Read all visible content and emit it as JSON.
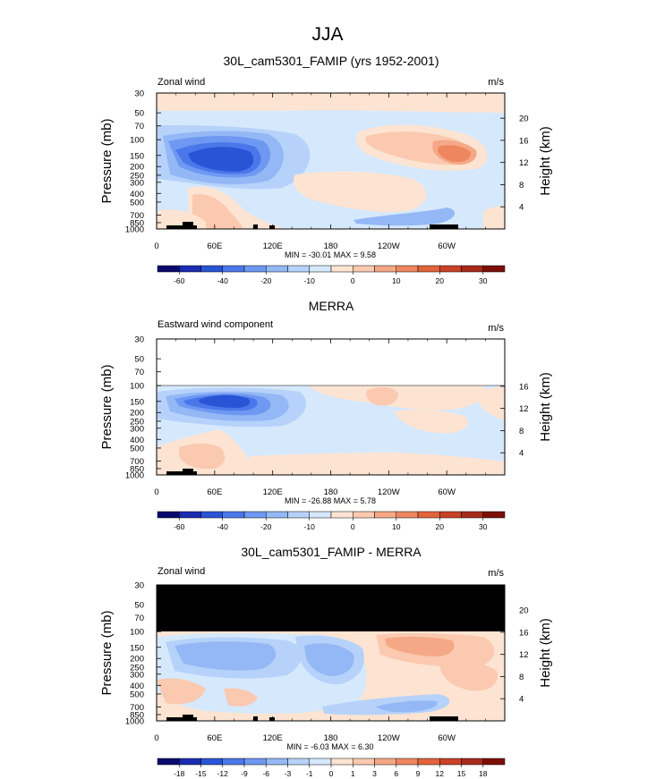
{
  "page": {
    "title": "JJA"
  },
  "chart_data": [
    {
      "type": "heatmap",
      "title": "30L_cam5301_FAMIP (yrs 1952-2001)",
      "left_label": "Zonal wind",
      "units": "m/s",
      "ylabel": "Pressure (mb)",
      "ylabel_right": "Height (km)",
      "x_ticks": [
        "0",
        "60E",
        "120E",
        "180",
        "120W",
        "60W"
      ],
      "y_ticks": [
        "30",
        "50",
        "70",
        "100",
        "150",
        "200",
        "250",
        "300",
        "400",
        "500",
        "700",
        "850",
        "1000"
      ],
      "height_ticks": [
        "20",
        "16",
        "12",
        "8",
        "4"
      ],
      "stats": "MIN = -30.01   MAX =   9.58",
      "data_top_pressure": 30,
      "colorbar": {
        "labels": [
          "-60",
          "-40",
          "-20",
          "-10",
          "0",
          "10",
          "20",
          "30"
        ],
        "colors": [
          "#0a0a6e",
          "#1a2cb0",
          "#2a54d6",
          "#4a78ea",
          "#6e98f2",
          "#94b8f6",
          "#b6d2fa",
          "#d6e8fc",
          "#fde4d2",
          "#fac9b0",
          "#f5a886",
          "#ee8660",
          "#e2643c",
          "#c94228",
          "#a82a1a",
          "#7a1008"
        ]
      }
    },
    {
      "type": "heatmap",
      "title": "MERRA",
      "left_label": "Eastward wind component",
      "units": "m/s",
      "ylabel": "Pressure (mb)",
      "ylabel_right": "Height (km)",
      "x_ticks": [
        "0",
        "60E",
        "120E",
        "180",
        "120W",
        "60W"
      ],
      "y_ticks": [
        "30",
        "50",
        "70",
        "100",
        "150",
        "200",
        "250",
        "300",
        "400",
        "500",
        "700",
        "850",
        "1000"
      ],
      "height_ticks": [
        "16",
        "12",
        "8",
        "4"
      ],
      "stats": "MIN = -26.88   MAX =   5.78",
      "data_top_pressure": 100,
      "colorbar": {
        "labels": [
          "-60",
          "-40",
          "-20",
          "-10",
          "0",
          "10",
          "20",
          "30"
        ],
        "colors": [
          "#0a0a6e",
          "#1a2cb0",
          "#2a54d6",
          "#4a78ea",
          "#6e98f2",
          "#94b8f6",
          "#b6d2fa",
          "#d6e8fc",
          "#fde4d2",
          "#fac9b0",
          "#f5a886",
          "#ee8660",
          "#e2643c",
          "#c94228",
          "#a82a1a",
          "#7a1008"
        ]
      }
    },
    {
      "type": "heatmap",
      "title": "30L_cam5301_FAMIP - MERRA",
      "left_label": "Zonal wind",
      "units": "m/s",
      "ylabel": "Pressure (mb)",
      "ylabel_right": "Height (km)",
      "x_ticks": [
        "0",
        "60E",
        "120E",
        "180",
        "120W",
        "60W"
      ],
      "y_ticks": [
        "30",
        "50",
        "70",
        "100",
        "150",
        "200",
        "250",
        "300",
        "400",
        "500",
        "700",
        "850",
        "1000"
      ],
      "height_ticks": [
        "20",
        "16",
        "12",
        "8",
        "4"
      ],
      "stats": "MIN =  -6.03   MAX =   6.30",
      "data_top_pressure": 100,
      "colorbar": {
        "labels": [
          "-18",
          "-15",
          "-12",
          "-9",
          "-6",
          "-3",
          "-1",
          "0",
          "1",
          "3",
          "6",
          "9",
          "12",
          "15",
          "18"
        ],
        "colors": [
          "#0a0a6e",
          "#1a2cb0",
          "#2a54d6",
          "#4a78ea",
          "#6e98f2",
          "#94b8f6",
          "#b6d2fa",
          "#d6e8fc",
          "#fde4d2",
          "#fac9b0",
          "#f5a886",
          "#ee8660",
          "#e2643c",
          "#c94228",
          "#a82a1a",
          "#7a1008"
        ]
      }
    }
  ]
}
